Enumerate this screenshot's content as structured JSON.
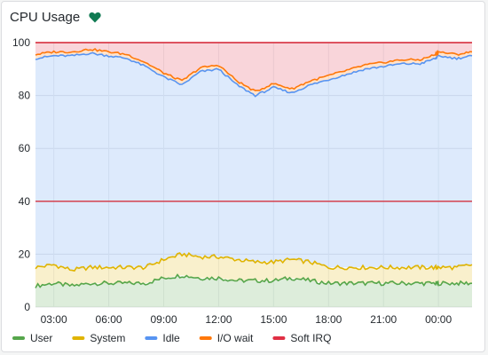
{
  "panel": {
    "title": "CPU Usage",
    "health_icon": "heart-icon",
    "health_color": "#0f7a52"
  },
  "chart_data": {
    "type": "area",
    "title": "CPU Usage",
    "stacked": true,
    "x_start": "02:00",
    "x_end": "01:50",
    "x_tick_labels": [
      "03:00",
      "06:00",
      "09:00",
      "12:00",
      "15:00",
      "18:00",
      "21:00",
      "00:00"
    ],
    "y_tick_labels": [
      "0",
      "20",
      "40",
      "60",
      "80",
      "100"
    ],
    "ylim": [
      0,
      100
    ],
    "grid": "horizontal",
    "legend_position": "bottom-left",
    "threshold_lines": [
      40,
      100
    ],
    "threshold_color": "#d4323f",
    "x": [
      "02:00",
      "03:00",
      "04:00",
      "05:00",
      "06:00",
      "07:00",
      "08:00",
      "09:00",
      "10:00",
      "11:00",
      "12:00",
      "13:00",
      "14:00",
      "15:00",
      "16:00",
      "17:00",
      "18:00",
      "19:00",
      "20:00",
      "21:00",
      "22:00",
      "23:00",
      "23:50",
      "00:00",
      "01:00",
      "01:50"
    ],
    "series": [
      {
        "name": "User",
        "color": "#56a64b",
        "values": [
          8,
          9,
          8,
          9,
          9,
          9,
          9,
          11,
          12,
          11,
          11,
          10,
          10,
          10,
          11,
          10,
          9,
          9,
          9,
          9,
          9,
          9,
          9,
          9,
          9,
          9
        ]
      },
      {
        "name": "System",
        "color": "#e0b400",
        "values": [
          7,
          7,
          6,
          6,
          6,
          6,
          6,
          7,
          8,
          8,
          8,
          8,
          7,
          7,
          7,
          7,
          6,
          6,
          6,
          6,
          6,
          6,
          6,
          6,
          6,
          7
        ]
      },
      {
        "name": "Idle",
        "color": "#5794f2",
        "values": [
          79,
          79,
          81,
          81,
          80,
          79,
          76,
          69,
          64,
          70,
          71,
          66,
          63,
          66,
          63,
          67,
          71,
          73,
          75,
          76,
          77,
          77,
          79,
          80,
          79,
          79
        ]
      },
      {
        "name": "I/O wait",
        "color": "#ff780a",
        "values": [
          1.5,
          1.5,
          1.5,
          1.5,
          1.5,
          1.5,
          1.5,
          1.5,
          1.5,
          1.5,
          1.5,
          1.5,
          1.5,
          1.5,
          1.5,
          1.5,
          1.5,
          1.5,
          1.5,
          1.5,
          1.5,
          1.5,
          1.5,
          1.5,
          1.5,
          1.5
        ]
      },
      {
        "name": "Soft IRQ",
        "color": "#e02f44",
        "values": [
          4.5,
          3.5,
          3.5,
          2.5,
          3.5,
          4.5,
          7.5,
          11.5,
          14.5,
          9.5,
          8.5,
          14.5,
          18.5,
          15.5,
          17.5,
          14.5,
          12.5,
          10.5,
          8.5,
          7.5,
          6.5,
          6.5,
          4.5,
          3.5,
          4.5,
          3.5
        ]
      }
    ]
  }
}
